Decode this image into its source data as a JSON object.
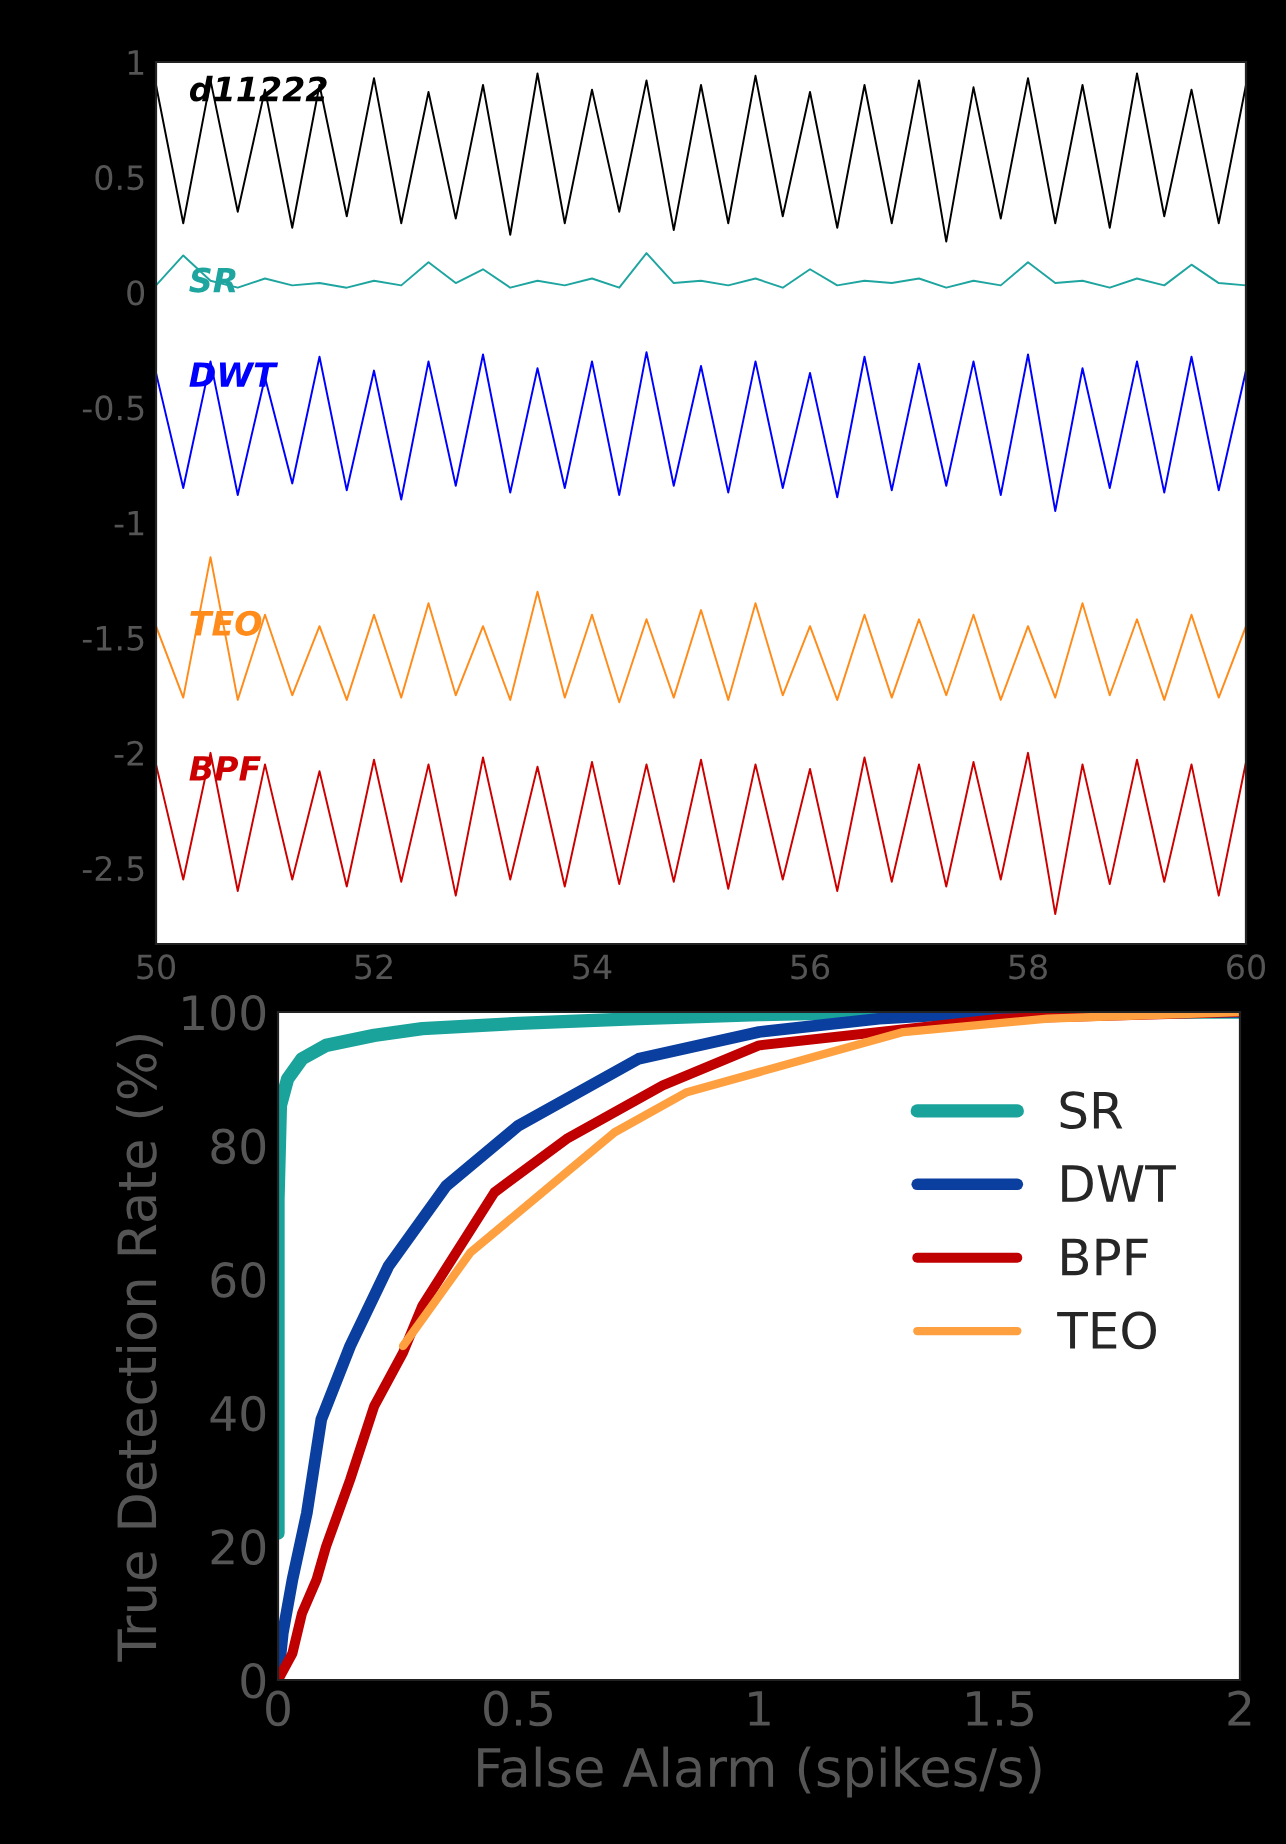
{
  "chart_data": [
    {
      "type": "line",
      "xlim": [
        50,
        60
      ],
      "ylim": [
        -2.83,
        1
      ],
      "xticks": [
        50,
        52,
        54,
        56,
        58,
        60
      ],
      "yticks": [
        {
          "value": -2.5,
          "label": "-2.5"
        },
        {
          "value": -2,
          "label": "-2"
        },
        {
          "value": -1.5,
          "label": "-1.5"
        },
        {
          "value": -1,
          "label": "-1"
        },
        {
          "value": -0.5,
          "label": "-0.5"
        },
        0,
        0.5,
        1
      ],
      "grid": false,
      "legend": false,
      "x": [
        50,
        50.25,
        50.5,
        50.75,
        51,
        51.25,
        51.5,
        51.75,
        52,
        52.25,
        52.5,
        52.75,
        53,
        53.25,
        53.5,
        53.75,
        54,
        54.25,
        54.5,
        54.75,
        55,
        55.25,
        55.5,
        55.75,
        56,
        56.25,
        56.5,
        56.75,
        57,
        57.25,
        57.5,
        57.75,
        58,
        58.25,
        58.5,
        58.75,
        59,
        59.25,
        59.5,
        59.75,
        60
      ],
      "series": [
        {
          "name": "d11222",
          "color": "#000000",
          "values": [
            0.9,
            0.3,
            0.92,
            0.35,
            0.88,
            0.28,
            0.9,
            0.33,
            0.93,
            0.3,
            0.87,
            0.32,
            0.9,
            0.25,
            0.95,
            0.3,
            0.88,
            0.35,
            0.92,
            0.27,
            0.9,
            0.3,
            0.94,
            0.33,
            0.87,
            0.28,
            0.9,
            0.3,
            0.92,
            0.22,
            0.89,
            0.32,
            0.93,
            0.3,
            0.9,
            0.28,
            0.95,
            0.33,
            0.88,
            0.3,
            0.9
          ]
        },
        {
          "name": "SR",
          "color": "#1fa5a0",
          "values": [
            0.03,
            0.16,
            0.05,
            0.02,
            0.06,
            0.03,
            0.04,
            0.02,
            0.05,
            0.03,
            0.13,
            0.04,
            0.1,
            0.02,
            0.05,
            0.03,
            0.06,
            0.02,
            0.17,
            0.04,
            0.05,
            0.03,
            0.06,
            0.02,
            0.1,
            0.03,
            0.05,
            0.04,
            0.06,
            0.02,
            0.05,
            0.03,
            0.13,
            0.04,
            0.05,
            0.02,
            0.06,
            0.03,
            0.12,
            0.04,
            0.03
          ]
        },
        {
          "name": "DWT",
          "color": "#0000ff",
          "values": [
            -0.35,
            -0.85,
            -0.3,
            -0.88,
            -0.37,
            -0.83,
            -0.28,
            -0.86,
            -0.34,
            -0.9,
            -0.3,
            -0.84,
            -0.27,
            -0.87,
            -0.33,
            -0.85,
            -0.3,
            -0.88,
            -0.26,
            -0.84,
            -0.32,
            -0.87,
            -0.3,
            -0.85,
            -0.35,
            -0.89,
            -0.28,
            -0.86,
            -0.31,
            -0.84,
            -0.3,
            -0.88,
            -0.27,
            -0.95,
            -0.33,
            -0.85,
            -0.3,
            -0.87,
            -0.28,
            -0.86,
            -0.34
          ]
        },
        {
          "name": "TEO",
          "color": "#ff8c1a",
          "values": [
            -1.45,
            -1.76,
            -1.15,
            -1.77,
            -1.4,
            -1.75,
            -1.45,
            -1.77,
            -1.4,
            -1.76,
            -1.35,
            -1.75,
            -1.45,
            -1.77,
            -1.3,
            -1.76,
            -1.4,
            -1.78,
            -1.42,
            -1.76,
            -1.38,
            -1.77,
            -1.35,
            -1.75,
            -1.45,
            -1.77,
            -1.4,
            -1.76,
            -1.42,
            -1.75,
            -1.4,
            -1.77,
            -1.45,
            -1.76,
            -1.35,
            -1.75,
            -1.42,
            -1.77,
            -1.4,
            -1.76,
            -1.45
          ]
        },
        {
          "name": "BPF",
          "color": "#cc0000",
          "values": [
            -2.05,
            -2.55,
            -2.0,
            -2.6,
            -2.05,
            -2.55,
            -2.08,
            -2.58,
            -2.03,
            -2.56,
            -2.05,
            -2.62,
            -2.02,
            -2.55,
            -2.06,
            -2.58,
            -2.04,
            -2.57,
            -2.05,
            -2.56,
            -2.03,
            -2.59,
            -2.05,
            -2.55,
            -2.07,
            -2.6,
            -2.02,
            -2.56,
            -2.05,
            -2.58,
            -2.04,
            -2.55,
            -2.0,
            -2.7,
            -2.05,
            -2.57,
            -2.03,
            -2.56,
            -2.05,
            -2.62,
            -2.04
          ]
        }
      ]
    },
    {
      "type": "line",
      "xlim": [
        0,
        2
      ],
      "ylim": [
        0,
        100
      ],
      "xticks": [
        0,
        0.5,
        1,
        1.5,
        2
      ],
      "yticks": [
        0,
        20,
        40,
        60,
        80,
        100
      ],
      "xlabel": "False Alarm (spikes/s)",
      "ylabel": "True Detection Rate (%)",
      "grid": false,
      "legend": "top right",
      "series": [
        {
          "name": "SR",
          "color": "#1aa39b",
          "x": [
            0,
            0,
            0.005,
            0.02,
            0.05,
            0.1,
            0.2,
            0.3,
            0.5,
            0.75,
            1,
            1.25,
            2
          ],
          "values": [
            22,
            72,
            86,
            90,
            93,
            95,
            96.5,
            97.5,
            98.3,
            99,
            99.6,
            100,
            100
          ]
        },
        {
          "name": "DWT",
          "color": "#0a3fa0",
          "x": [
            0,
            0.01,
            0.03,
            0.06,
            0.09,
            0.15,
            0.23,
            0.35,
            0.5,
            0.75,
            1,
            1.25,
            1.5,
            2
          ],
          "values": [
            0,
            7,
            15,
            25,
            39,
            50,
            62,
            74,
            83,
            93,
            97,
            99,
            100,
            100
          ]
        },
        {
          "name": "BPF",
          "color": "#c00000",
          "x": [
            0,
            0.03,
            0.05,
            0.08,
            0.1,
            0.15,
            0.2,
            0.26,
            0.3,
            0.45,
            0.6,
            0.8,
            1,
            1.5,
            2
          ],
          "values": [
            0,
            4,
            10,
            15,
            20,
            30,
            41,
            49,
            56,
            73,
            81,
            89,
            95,
            99,
            100
          ]
        },
        {
          "name": "TEO",
          "color": "#ffa040",
          "x": [
            0.26,
            0.3,
            0.35,
            0.4,
            0.5,
            0.6,
            0.7,
            0.85,
            1,
            1.15,
            1.3,
            1.6,
            2
          ],
          "values": [
            50,
            54,
            59,
            64,
            70,
            76,
            82,
            88,
            91,
            94,
            97,
            99,
            100
          ]
        }
      ]
    }
  ]
}
